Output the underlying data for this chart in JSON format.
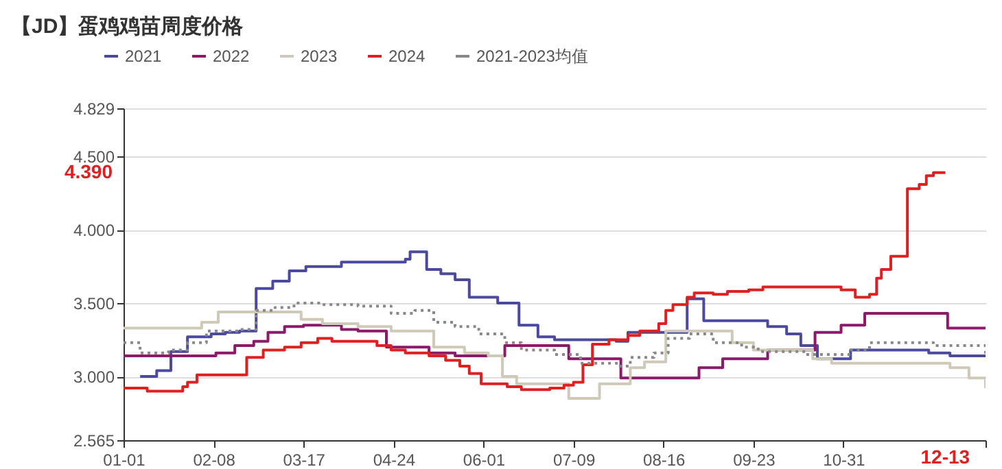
{
  "chart_data": {
    "type": "step",
    "title": "【JD】蛋鸡鸡苗周度价格",
    "xlim": [
      "--01-01",
      "--12-30"
    ],
    "xticks": [
      {
        "value": "--01-01",
        "label": "01-01"
      },
      {
        "value": "--02-08",
        "label": "02-08"
      },
      {
        "value": "--03-17",
        "label": "03-17"
      },
      {
        "value": "--04-24",
        "label": "04-24"
      },
      {
        "value": "--06-01",
        "label": "06-01"
      },
      {
        "value": "--07-09",
        "label": "07-09"
      },
      {
        "value": "--08-16",
        "label": "08-16"
      },
      {
        "value": "--09-23",
        "label": "09-23"
      },
      {
        "value": "--10-31",
        "label": "10-31"
      },
      {
        "value": "--12-30",
        "label": null
      }
    ],
    "ylim": [
      2.565,
      4.829
    ],
    "yticks": [
      2.565,
      {
        "value": 3,
        "label": "3.000"
      },
      {
        "value": 3.5,
        "label": "3.500"
      },
      {
        "value": 4,
        "label": "4.000"
      },
      {
        "value": 4.5,
        "label": "4.500"
      },
      4.829
    ],
    "grid": "y",
    "legend": "top",
    "annotations": [
      "4.390",
      "12-13"
    ],
    "series": [
      {
        "name": "2021",
        "color": "#4b4a9e",
        "x": [
          "--01-08",
          "--01-15",
          "--01-21",
          "--01-28",
          "--02-07",
          "--02-13",
          "--02-19",
          "--02-26",
          "--03-04",
          "--03-11",
          "--03-18",
          "--04-02",
          "--04-29",
          "--05-01",
          "--05-08",
          "--05-14",
          "--05-20",
          "--05-26",
          "--06-07",
          "--06-16",
          "--06-24",
          "--07-01",
          "--07-27",
          "--08-01",
          "--08-26",
          "--09-02",
          "--09-29",
          "--10-07",
          "--10-13",
          "--10-20",
          "--11-03",
          "--12-06",
          "--12-15",
          "--12-30"
        ],
        "values": [
          3.0,
          3.04,
          3.17,
          3.27,
          3.29,
          3.3,
          3.31,
          3.6,
          3.65,
          3.72,
          3.75,
          3.78,
          3.8,
          3.85,
          3.73,
          3.7,
          3.66,
          3.54,
          3.5,
          3.35,
          3.27,
          3.25,
          3.24,
          3.3,
          3.53,
          3.38,
          3.34,
          3.29,
          3.21,
          3.12,
          3.18,
          3.16,
          3.14,
          3.14
        ]
      },
      {
        "name": "2022",
        "color": "#8b1a6b",
        "x": [
          "--01-01",
          "--02-09",
          "--02-17",
          "--02-25",
          "--03-02",
          "--03-09",
          "--03-17",
          "--04-02",
          "--04-09",
          "--04-21",
          "--05-09",
          "--05-20",
          "--06-10",
          "--07-07",
          "--07-29",
          "--08-31",
          "--09-10",
          "--09-29",
          "--10-19",
          "--10-30",
          "--11-09",
          "--12-14",
          "--12-30"
        ],
        "values": [
          3.14,
          3.16,
          3.21,
          3.24,
          3.3,
          3.34,
          3.35,
          3.32,
          3.31,
          3.2,
          3.16,
          3.14,
          3.21,
          3.12,
          2.99,
          3.06,
          3.12,
          3.18,
          3.3,
          3.35,
          3.43,
          3.33,
          3.33
        ]
      },
      {
        "name": "2023",
        "color": "#cfc9b8",
        "x": [
          "--01-01",
          "--02-03",
          "--02-10",
          "--03-16",
          "--03-25",
          "--04-09",
          "--04-23",
          "--05-11",
          "--05-24",
          "--06-03",
          "--06-09",
          "--06-15",
          "--07-07",
          "--07-20",
          "--08-02",
          "--08-08",
          "--08-17",
          "--09-14",
          "--09-23",
          "--10-18",
          "--10-26",
          "--12-15",
          "--12-23",
          "--12-30"
        ],
        "values": [
          3.33,
          3.37,
          3.44,
          3.39,
          3.36,
          3.34,
          3.31,
          3.2,
          3.16,
          3.14,
          3.0,
          2.95,
          2.85,
          2.95,
          3.06,
          3.1,
          3.31,
          3.23,
          3.18,
          3.12,
          3.09,
          3.06,
          2.99,
          2.92
        ]
      },
      {
        "name": "2024",
        "color": "#e02020",
        "x": [
          "--01-01",
          "--01-11",
          "--01-26",
          "--01-28",
          "--02-01",
          "--02-22",
          "--02-29",
          "--03-09",
          "--03-16",
          "--03-23",
          "--03-29",
          "--04-17",
          "--04-23",
          "--04-29",
          "--05-09",
          "--05-16",
          "--05-22",
          "--05-26",
          "--05-31",
          "--06-11",
          "--06-17",
          "--06-29",
          "--07-05",
          "--07-09",
          "--07-13",
          "--07-17",
          "--07-24",
          "--08-01",
          "--08-06",
          "--08-14",
          "--08-17",
          "--08-20",
          "--08-26",
          "--08-29",
          "--09-06",
          "--09-12",
          "--09-21",
          "--09-27",
          "--10-30",
          "--11-05",
          "--11-11",
          "--11-14",
          "--11-16",
          "--11-20",
          "--11-27",
          "--12-02",
          "--12-05",
          "--12-08",
          "--12-13"
        ],
        "values": [
          2.92,
          2.9,
          2.93,
          2.96,
          3.01,
          3.13,
          3.18,
          3.2,
          3.23,
          3.26,
          3.24,
          3.21,
          3.18,
          3.16,
          3.14,
          3.11,
          3.07,
          3.02,
          2.95,
          2.93,
          2.91,
          2.92,
          2.94,
          2.96,
          3.08,
          3.22,
          3.25,
          3.28,
          3.31,
          3.36,
          3.45,
          3.49,
          3.54,
          3.57,
          3.56,
          3.58,
          3.59,
          3.61,
          3.59,
          3.54,
          3.56,
          3.67,
          3.73,
          3.82,
          4.28,
          4.31,
          4.37,
          4.39,
          4.39
        ]
      },
      {
        "name": "2021-2023均值",
        "color": "#888888",
        "line_style": "dotted",
        "x": [
          "--01-01",
          "--01-08",
          "--01-20",
          "--01-28",
          "--02-05",
          "--02-19",
          "--02-26",
          "--03-05",
          "--03-13",
          "--03-25",
          "--04-09",
          "--04-23",
          "--05-03",
          "--05-11",
          "--05-20",
          "--05-30",
          "--06-10",
          "--06-17",
          "--07-01",
          "--07-12",
          "--07-28",
          "--08-02",
          "--08-12",
          "--08-18",
          "--08-27",
          "--09-06",
          "--09-18",
          "--09-25",
          "--10-15",
          "--11-03",
          "--11-11",
          "--12-08",
          "--12-30"
        ],
        "values": [
          3.23,
          3.16,
          3.18,
          3.23,
          3.31,
          3.32,
          3.45,
          3.47,
          3.5,
          3.49,
          3.48,
          3.43,
          3.45,
          3.37,
          3.34,
          3.29,
          3.23,
          3.18,
          3.15,
          3.09,
          3.07,
          3.13,
          3.16,
          3.26,
          3.29,
          3.23,
          3.2,
          3.17,
          3.15,
          3.18,
          3.23,
          3.21,
          3.14
        ]
      }
    ]
  }
}
